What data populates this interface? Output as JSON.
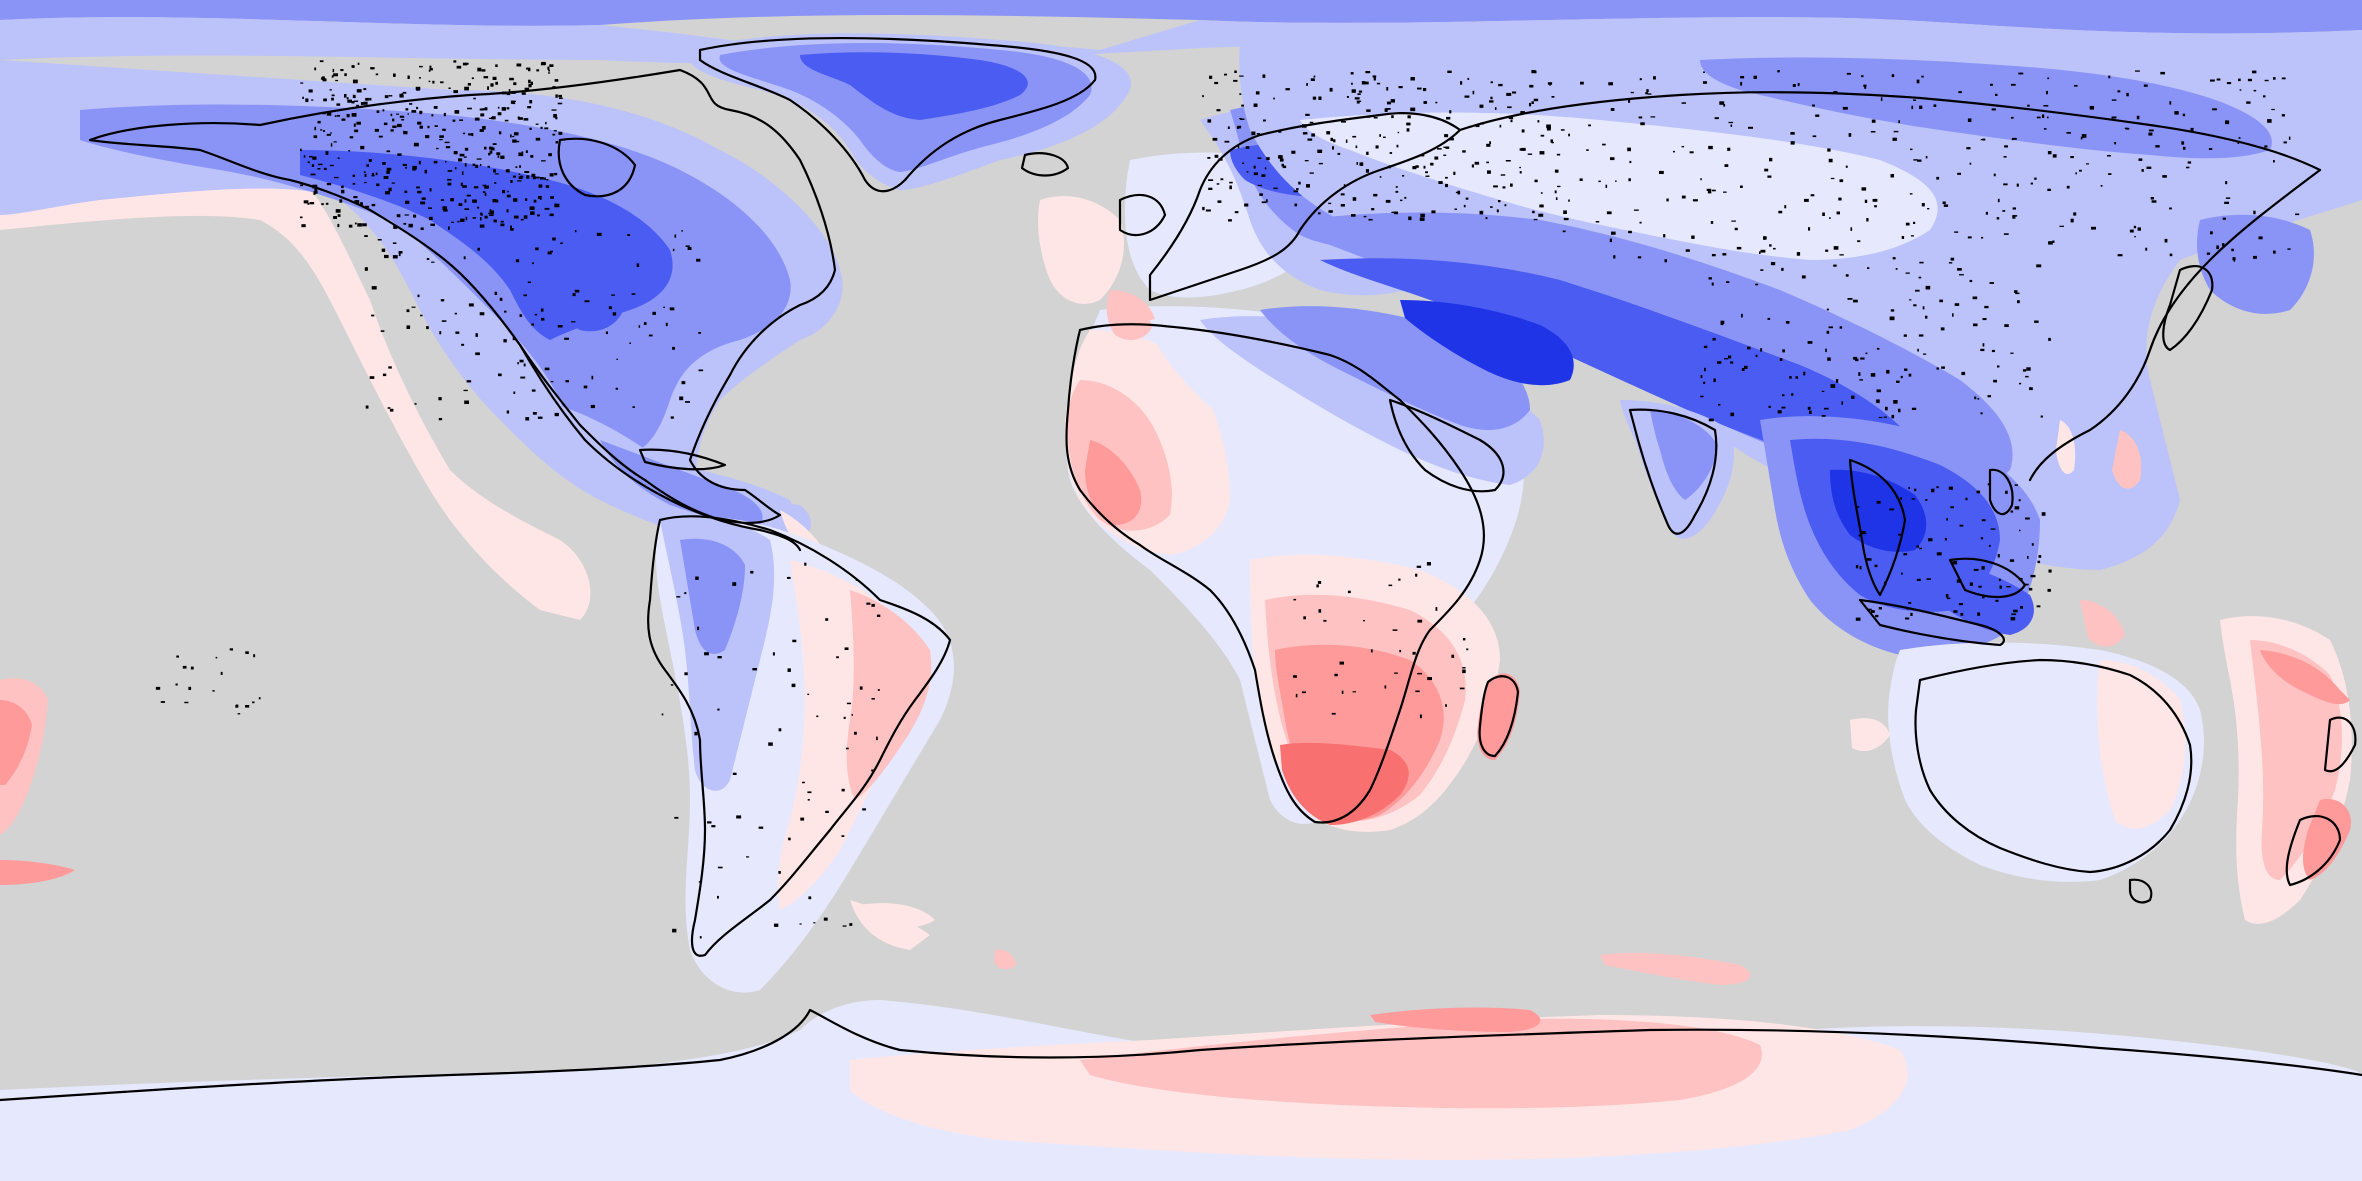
{
  "map": {
    "projection": "equirectangular",
    "background_color": "#d3d3d3",
    "coastline_color": "#000000",
    "palette": {
      "cold_4": "#1e34e6",
      "cold_3": "#4a5cf2",
      "cold_2": "#8a94f6",
      "cold_1": "#bcc2fa",
      "cold_0": "#e6e8fd",
      "neutral": "#ffffff",
      "warm_0": "#ffe6e6",
      "warm_1": "#ffc2c2",
      "warm_2": "#ff9a9a",
      "warm_3": "#f97070"
    },
    "regions": [
      "arctic",
      "north-america",
      "greenland",
      "central-america",
      "south-america",
      "africa",
      "madagascar",
      "europe",
      "middle-east",
      "asia",
      "india",
      "southeast-asia",
      "australia",
      "new-zealand",
      "pacific-islands",
      "antarctica"
    ]
  }
}
